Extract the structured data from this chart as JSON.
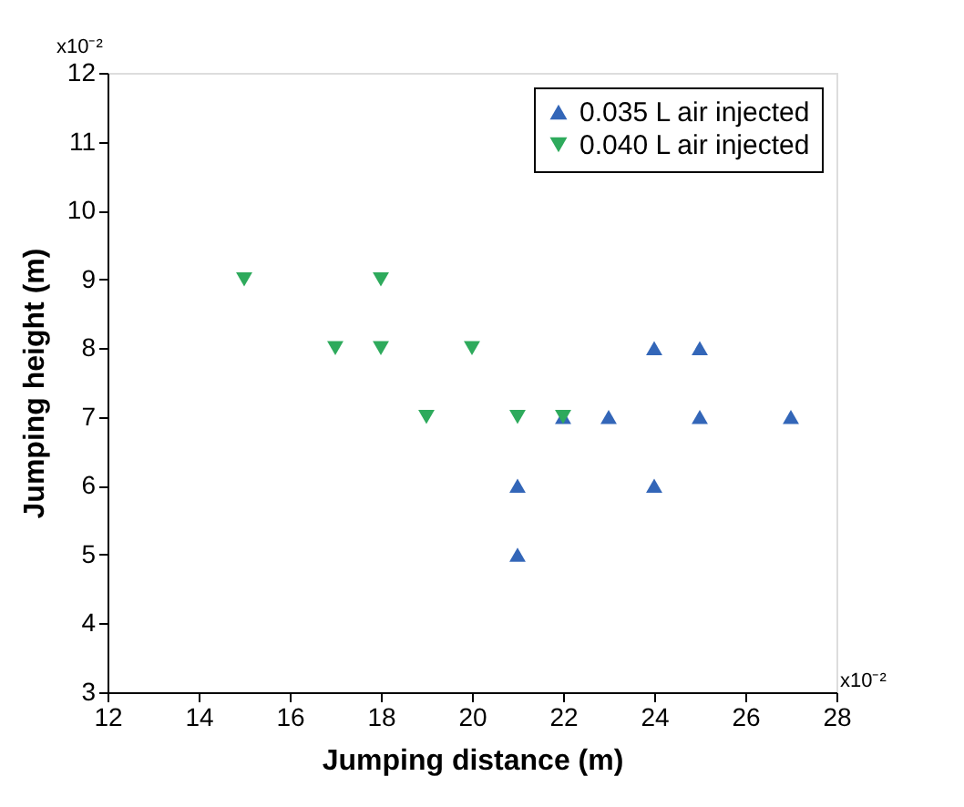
{
  "chart_data": {
    "type": "scatter",
    "xlabel": "Jumping distance (m)",
    "ylabel": "Jumping height (m)",
    "xlim": [
      12,
      28
    ],
    "xticks": [
      12,
      14,
      16,
      18,
      20,
      22,
      24,
      26,
      28
    ],
    "ylim": [
      3,
      12
    ],
    "yticks": [
      3,
      4,
      5,
      6,
      7,
      8,
      9,
      10,
      11,
      12
    ],
    "grid": false,
    "legend": "top right",
    "annotations": [
      "x10⁻²",
      "x10⁻²"
    ],
    "series": [
      {
        "name": "0.035 L air injected",
        "color": "#3366b8",
        "marker": "triangle",
        "x": [
          21,
          21,
          22,
          23,
          24,
          24,
          25,
          25,
          27
        ],
        "values": [
          6,
          5,
          7,
          7,
          8,
          6,
          8,
          7,
          7
        ]
      },
      {
        "name": "0.040 L air injected",
        "color": "#2eaa5c",
        "marker": "triangle-down",
        "x": [
          15,
          17,
          18,
          18,
          19,
          20,
          21,
          22
        ],
        "values": [
          9,
          8,
          9,
          8,
          7,
          8,
          7,
          7
        ]
      }
    ]
  }
}
